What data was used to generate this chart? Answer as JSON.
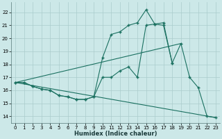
{
  "xlabel": "Humidex (Indice chaleur)",
  "bg_color": "#cce8e8",
  "grid_color": "#aacccc",
  "line_color": "#1a7060",
  "xlim": [
    -0.5,
    23.5
  ],
  "ylim": [
    13.5,
    22.8
  ],
  "xticks": [
    0,
    1,
    2,
    3,
    4,
    5,
    6,
    7,
    8,
    9,
    10,
    11,
    12,
    13,
    14,
    15,
    16,
    17,
    18,
    19,
    20,
    21,
    22,
    23
  ],
  "yticks": [
    14,
    15,
    16,
    17,
    18,
    19,
    20,
    21,
    22
  ],
  "curve1_x": [
    0,
    1,
    2,
    3,
    4,
    5,
    6,
    7,
    8,
    9,
    10,
    11,
    12,
    13,
    14,
    15,
    16,
    17,
    18,
    19,
    20,
    21,
    22,
    23
  ],
  "curve1_y": [
    16.6,
    16.6,
    16.3,
    16.1,
    16.0,
    15.6,
    15.5,
    15.3,
    15.3,
    15.5,
    18.5,
    20.3,
    20.5,
    21.0,
    21.2,
    22.2,
    21.1,
    21.2,
    18.1,
    null,
    null,
    null,
    null,
    null
  ],
  "curve2_x": [
    0,
    1,
    2,
    3,
    4,
    5,
    6,
    7,
    8,
    9,
    10,
    11,
    12,
    13,
    14,
    15,
    16,
    17,
    18,
    19,
    20,
    21,
    22,
    23
  ],
  "curve2_y": [
    16.6,
    16.6,
    16.3,
    16.1,
    16.0,
    15.6,
    15.5,
    15.3,
    15.3,
    15.5,
    17.0,
    17.0,
    17.5,
    17.8,
    17.0,
    21.0,
    21.1,
    21.0,
    18.1,
    19.6,
    17.0,
    16.2,
    14.0,
    13.9
  ],
  "line3_x": [
    0,
    19
  ],
  "line3_y": [
    16.6,
    19.6
  ],
  "line4_x": [
    0,
    23
  ],
  "line4_y": [
    16.6,
    13.9
  ]
}
